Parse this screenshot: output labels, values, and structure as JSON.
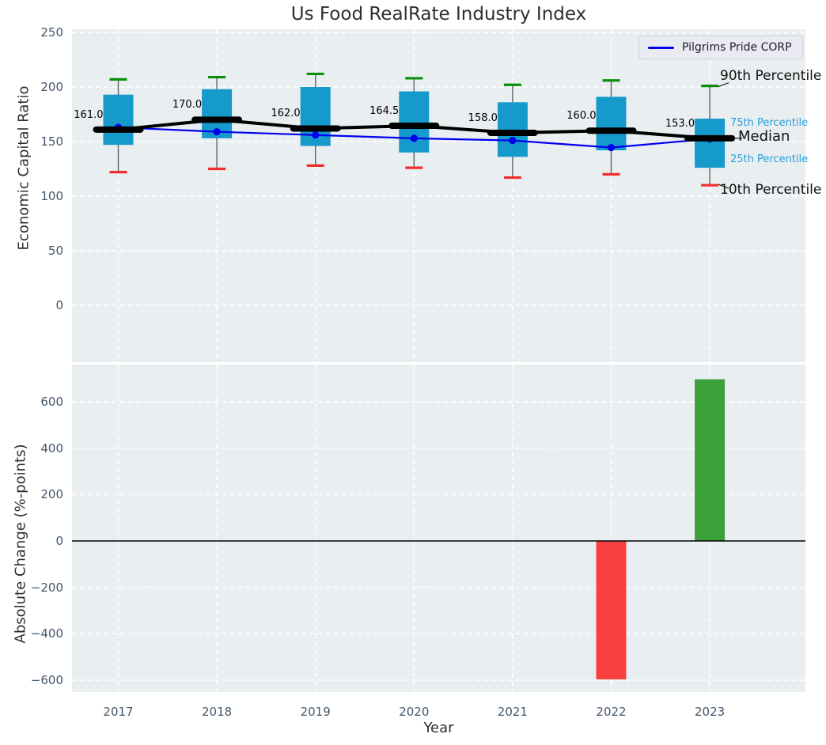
{
  "title": "Us Food RealRate Industry Index",
  "legend": {
    "label": "Pilgrims Pride CORP"
  },
  "annotations": {
    "p90": "90th Percentile",
    "p75": "75th Percentile",
    "median": "Median",
    "p25": "25th Percentile",
    "p10": "10th Percentile"
  },
  "axes": {
    "top_ylabel": "Economic Capital Ratio",
    "bottom_ylabel": "Absolute Change (%-points)",
    "xlabel": "Year"
  },
  "colors": {
    "box_fill": "#1699cb",
    "whisker": "#5e6368",
    "cap_high": "#0a8f0a",
    "cap_low": "#f22c2c",
    "median_line": "#000000",
    "company_line": "#0000f0",
    "bar_positive": "#3aa03a",
    "bar_negative": "#f94040",
    "panel_bg": "#e9eef0",
    "grid": "#ffffff",
    "zero_line": "#000000",
    "tick_text": "#445669",
    "annotation_cyan": "#27a0d5",
    "annotation_black": "#111111"
  },
  "chart_data": [
    {
      "type": "box",
      "title": "Us Food RealRate Industry Index",
      "ylabel": "Economic Capital Ratio",
      "categories": [
        2017,
        2018,
        2019,
        2020,
        2021,
        2022,
        2023
      ],
      "yticks": [
        0,
        50,
        100,
        150,
        200,
        250
      ],
      "ylim": [
        -52,
        253
      ],
      "grid": true,
      "legend_position": "upper right",
      "boxes": [
        {
          "year": 2017,
          "p10": 122,
          "p25": 147,
          "median": 161,
          "p75": 193,
          "p90": 207,
          "label": "161.0"
        },
        {
          "year": 2018,
          "p10": 125,
          "p25": 153,
          "median": 170,
          "p75": 198,
          "p90": 209,
          "label": "170.0"
        },
        {
          "year": 2019,
          "p10": 128,
          "p25": 146,
          "median": 162,
          "p75": 200,
          "p90": 212,
          "label": "162.0"
        },
        {
          "year": 2020,
          "p10": 126,
          "p25": 140,
          "median": 164.5,
          "p75": 196,
          "p90": 208,
          "label": "164.5"
        },
        {
          "year": 2021,
          "p10": 117,
          "p25": 136,
          "median": 158,
          "p75": 186,
          "p90": 202,
          "label": "158.0"
        },
        {
          "year": 2022,
          "p10": 120,
          "p25": 142,
          "median": 160,
          "p75": 191,
          "p90": 206,
          "label": "160.0"
        },
        {
          "year": 2023,
          "p10": 110,
          "p25": 126,
          "median": 153,
          "p75": 171,
          "p90": 201,
          "label": "153.0"
        }
      ],
      "series": [
        {
          "name": "Pilgrims Pride CORP",
          "values": [
            163,
            159,
            156,
            153,
            151,
            144.5,
            152.5
          ]
        }
      ]
    },
    {
      "type": "bar",
      "ylabel": "Absolute Change (%-points)",
      "xlabel": "Year",
      "categories": [
        2017,
        2018,
        2019,
        2020,
        2021,
        2022,
        2023
      ],
      "values": [
        null,
        null,
        null,
        null,
        null,
        -597,
        697
      ],
      "yticks": [
        -600,
        -400,
        -200,
        0,
        200,
        400,
        600
      ],
      "ylim": [
        -651,
        760
      ],
      "grid": true
    }
  ]
}
